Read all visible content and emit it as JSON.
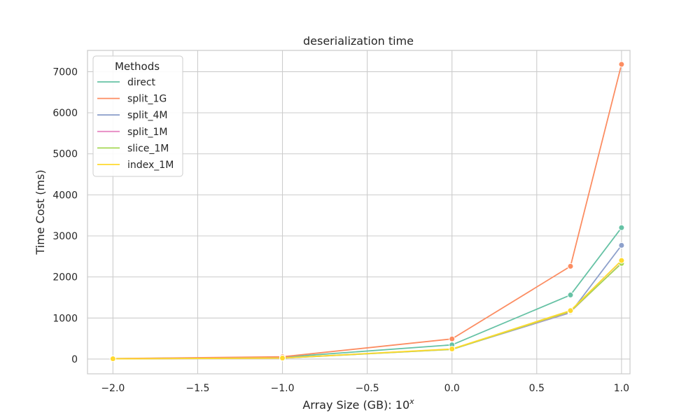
{
  "chart_data": {
    "type": "line",
    "title": "deserialization time",
    "xlabel_base": "Array Size (GB): 10",
    "xlabel_sup": "x",
    "ylabel": "Time Cost (ms)",
    "xlim": [
      -2.15,
      1.05
    ],
    "ylim": [
      -360,
      7520
    ],
    "x_ticks": [
      -2.0,
      -1.5,
      -1.0,
      -0.5,
      0.0,
      0.5,
      1.0
    ],
    "x_tick_labels": [
      "−2.0",
      "−1.5",
      "−1.0",
      "−0.5",
      "0.0",
      "0.5",
      "1.0"
    ],
    "y_ticks": [
      0,
      1000,
      2000,
      3000,
      4000,
      5000,
      6000,
      7000
    ],
    "y_tick_labels": [
      "0",
      "1000",
      "2000",
      "3000",
      "4000",
      "5000",
      "6000",
      "7000"
    ],
    "grid": true,
    "legend_title": "Methods",
    "legend_position": "upper-left",
    "x": [
      -2.0,
      -1.0,
      0.0,
      0.699,
      1.0
    ],
    "series": [
      {
        "name": "direct",
        "color": "#66c2a5",
        "values": [
          8,
          45,
          345,
          1560,
          3200
        ]
      },
      {
        "name": "split_1G",
        "color": "#fc8d62",
        "values": [
          10,
          55,
          490,
          2260,
          7180
        ]
      },
      {
        "name": "split_4M",
        "color": "#8da0cb",
        "values": [
          6,
          25,
          240,
          1130,
          2770
        ]
      },
      {
        "name": "split_1M",
        "color": "#e78ac3",
        "values": [
          5,
          22,
          235,
          1150,
          2340
        ]
      },
      {
        "name": "slice_1M",
        "color": "#a6d854",
        "values": [
          5,
          22,
          235,
          1160,
          2330
        ]
      },
      {
        "name": "index_1M",
        "color": "#ffd92f",
        "values": [
          6,
          24,
          245,
          1180,
          2400
        ]
      }
    ]
  }
}
